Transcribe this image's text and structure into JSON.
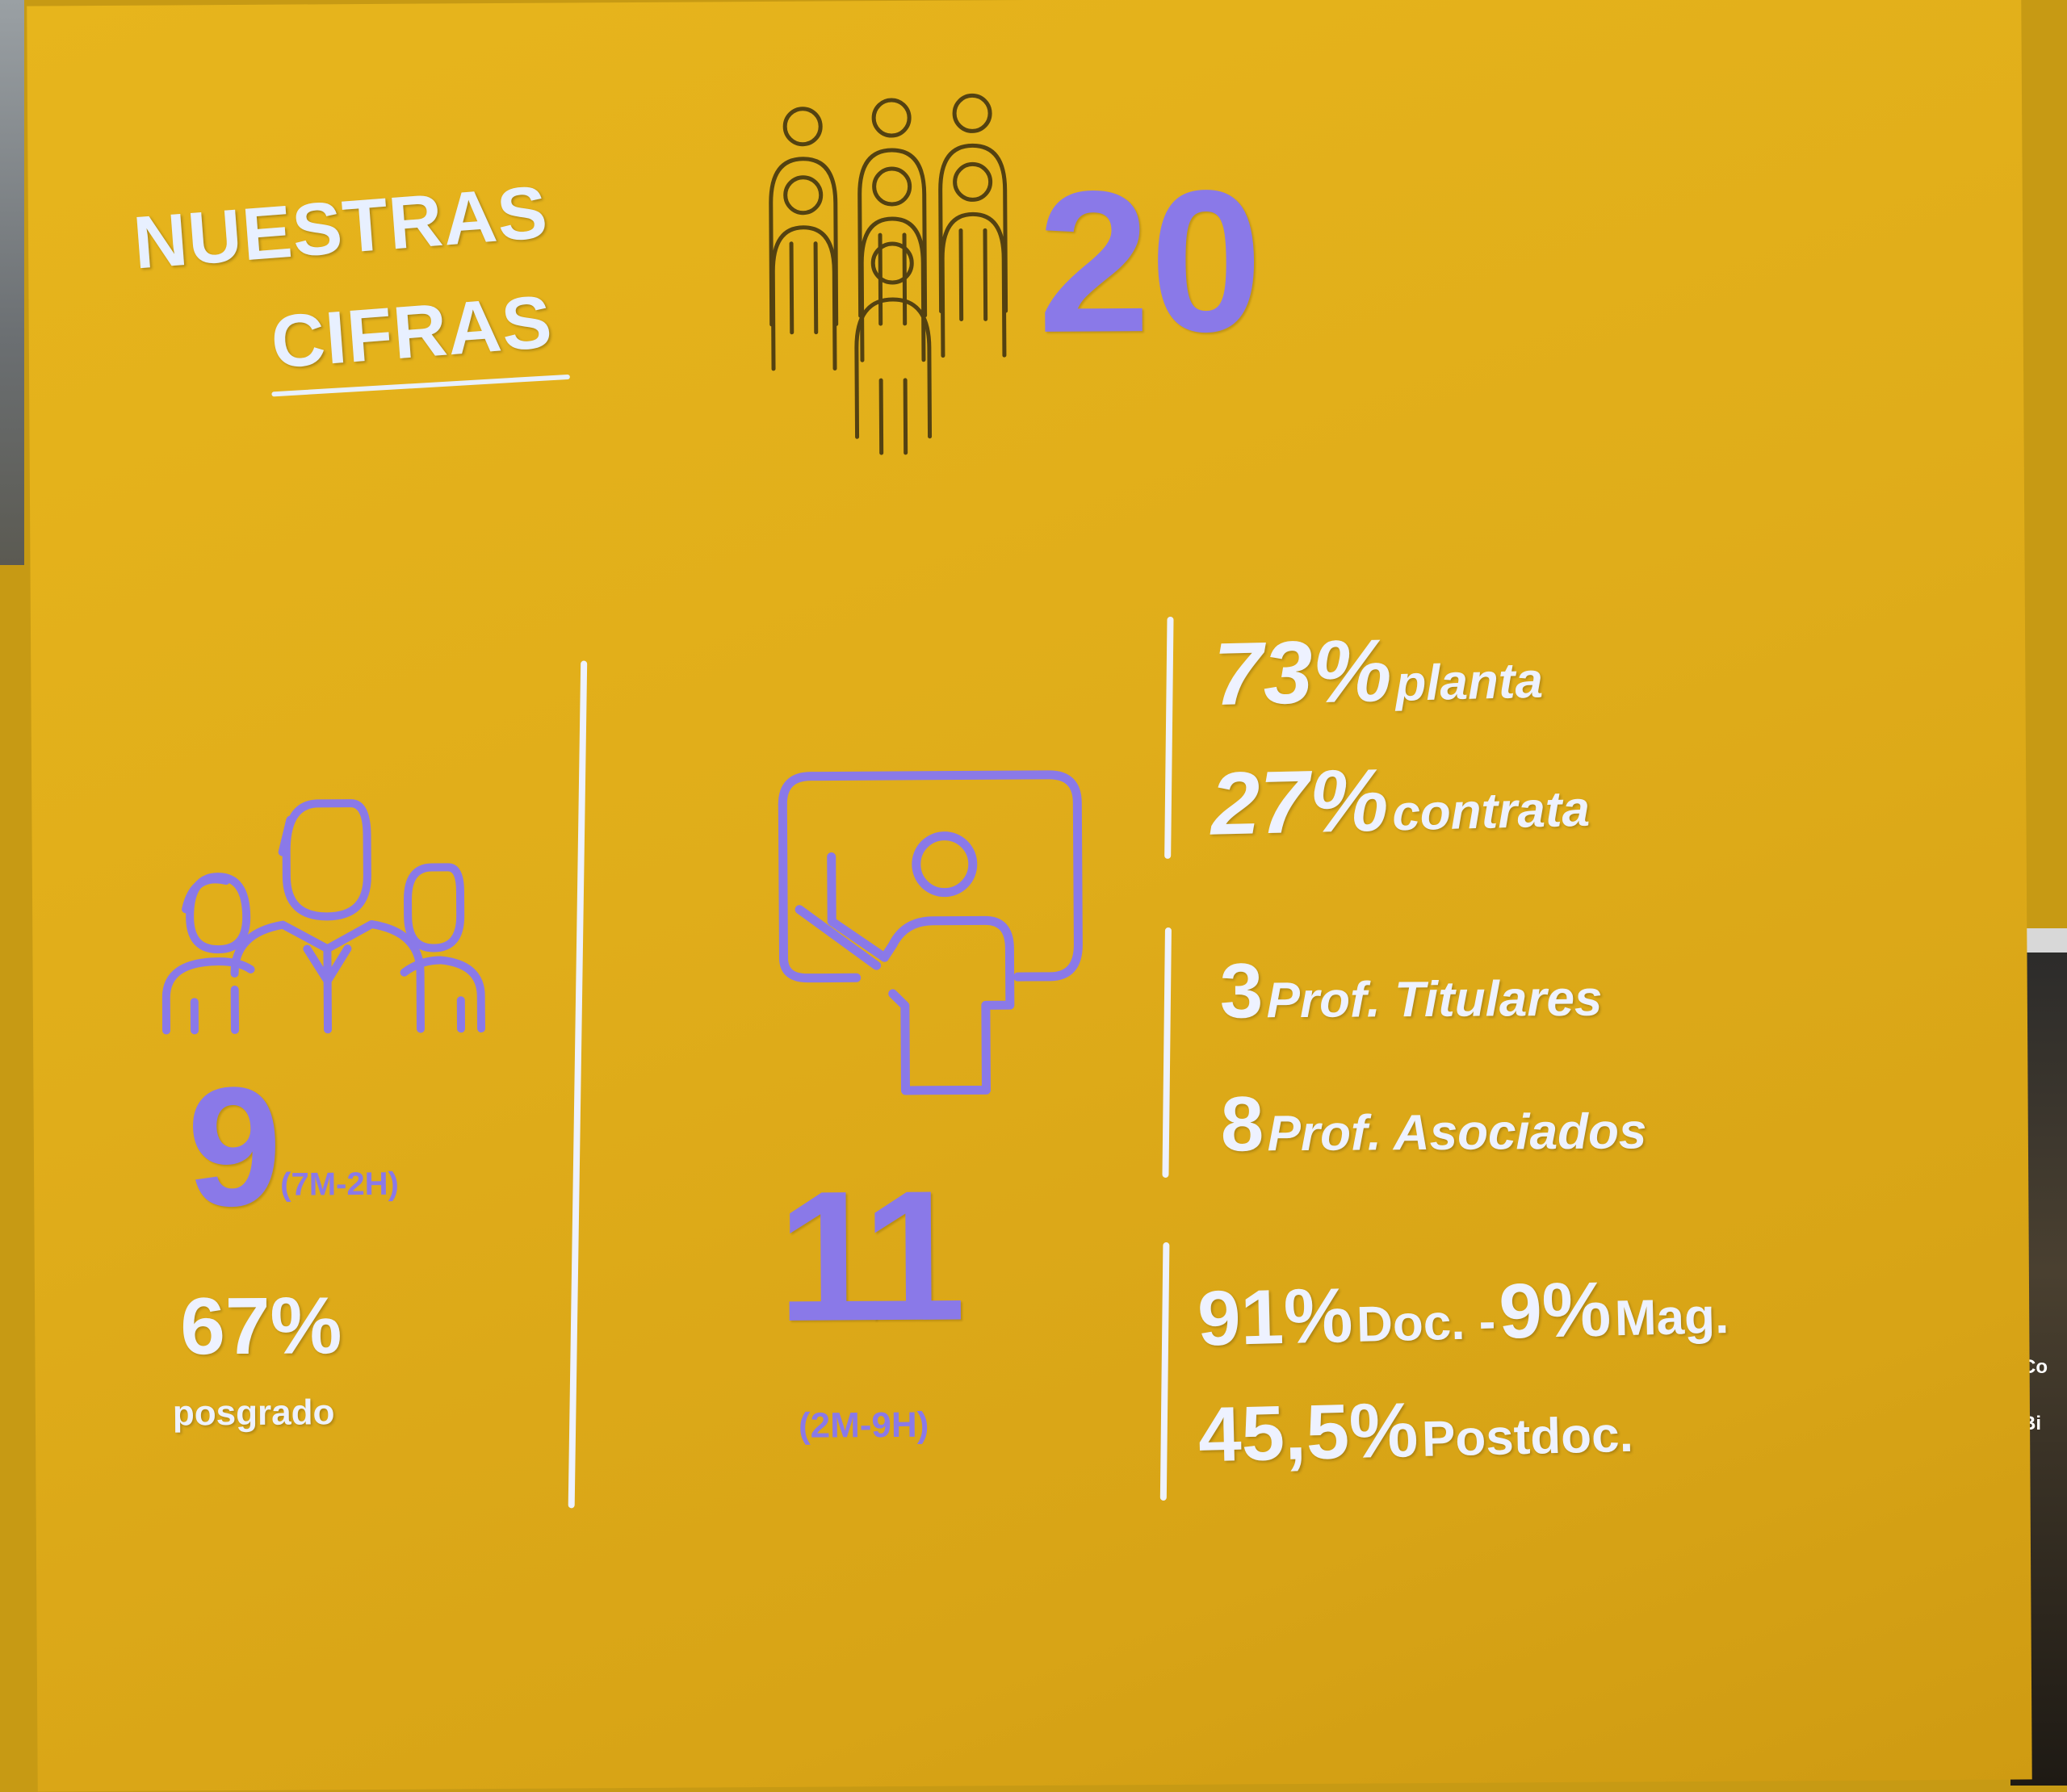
{
  "slide": {
    "title_line1": "NUESTRAS",
    "title_line2": "CIFRAS",
    "total": "20",
    "colors": {
      "background": "#e3b01b",
      "accent_purple": "#8a79e8",
      "text_white": "#eef2ff"
    },
    "icons": [
      "people-group-icon",
      "team-icon",
      "teacher-at-board-icon"
    ]
  },
  "left_group": {
    "count": "9",
    "breakdown": "(7M-2H)",
    "percent": "67%",
    "percent_label": "posgrado"
  },
  "middle_group": {
    "count": "11",
    "breakdown": "(2M-9H)"
  },
  "right_stats": {
    "planta_pct": "73%",
    "planta_label": "planta",
    "contrata_pct": "27%",
    "contrata_label": "contrata",
    "titulares_num": "3",
    "titulares_label": "Prof. Titulares",
    "asociados_num": "8",
    "asociados_label": "Prof. Asociados",
    "doc_pct": "91%",
    "doc_label": "Doc. -",
    "mag_pct": "9%",
    "mag_label": "Mag.",
    "postdoc_pct": "45,5%",
    "postdoc_label": "Postdoc."
  },
  "room": {
    "stand_text_1": "Co",
    "stand_text_2": "Bi"
  }
}
